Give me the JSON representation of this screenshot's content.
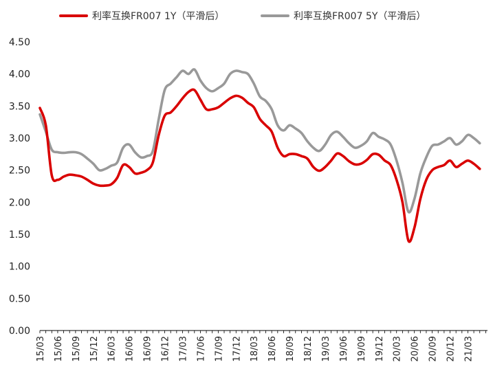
{
  "chart_data": {
    "type": "line",
    "ylim": [
      0,
      4.5
    ],
    "yticks": [
      "0.00",
      "0.50",
      "1.00",
      "1.50",
      "2.00",
      "2.50",
      "3.00",
      "3.50",
      "4.00",
      "4.50"
    ],
    "xtick_labels": [
      "15/03",
      "15/06",
      "15/09",
      "15/12",
      "16/03",
      "16/06",
      "16/09",
      "16/12",
      "17/03",
      "17/06",
      "17/09",
      "17/12",
      "18/03",
      "18/06",
      "18/09",
      "18/12",
      "19/03",
      "19/06",
      "19/09",
      "19/12",
      "20/03",
      "20/06",
      "20/09",
      "20/12",
      "21/03"
    ],
    "x_start": "2015-03",
    "grid": false,
    "legend_position": "top",
    "series": [
      {
        "name": "利率互换FR007 1Y（平滑后）",
        "color": "#d90000",
        "points": [
          [
            "2015-03",
            3.47
          ],
          [
            "2015-04",
            3.2
          ],
          [
            "2015-05",
            2.42
          ],
          [
            "2015-06",
            2.35
          ],
          [
            "2015-07",
            2.4
          ],
          [
            "2015-08",
            2.43
          ],
          [
            "2015-09",
            2.42
          ],
          [
            "2015-10",
            2.4
          ],
          [
            "2015-11",
            2.35
          ],
          [
            "2015-12",
            2.29
          ],
          [
            "2016-01",
            2.26
          ],
          [
            "2016-02",
            2.26
          ],
          [
            "2016-03",
            2.28
          ],
          [
            "2016-04",
            2.38
          ],
          [
            "2016-05",
            2.58
          ],
          [
            "2016-06",
            2.55
          ],
          [
            "2016-07",
            2.45
          ],
          [
            "2016-08",
            2.46
          ],
          [
            "2016-09",
            2.5
          ],
          [
            "2016-10",
            2.62
          ],
          [
            "2016-11",
            3.05
          ],
          [
            "2016-12",
            3.35
          ],
          [
            "2017-01",
            3.4
          ],
          [
            "2017-02",
            3.5
          ],
          [
            "2017-03",
            3.62
          ],
          [
            "2017-04",
            3.72
          ],
          [
            "2017-05",
            3.75
          ],
          [
            "2017-06",
            3.6
          ],
          [
            "2017-07",
            3.45
          ],
          [
            "2017-08",
            3.45
          ],
          [
            "2017-09",
            3.48
          ],
          [
            "2017-10",
            3.55
          ],
          [
            "2017-11",
            3.62
          ],
          [
            "2017-12",
            3.66
          ],
          [
            "2018-01",
            3.63
          ],
          [
            "2018-02",
            3.55
          ],
          [
            "2018-03",
            3.48
          ],
          [
            "2018-04",
            3.3
          ],
          [
            "2018-05",
            3.2
          ],
          [
            "2018-06",
            3.1
          ],
          [
            "2018-07",
            2.85
          ],
          [
            "2018-08",
            2.72
          ],
          [
            "2018-09",
            2.75
          ],
          [
            "2018-10",
            2.75
          ],
          [
            "2018-11",
            2.72
          ],
          [
            "2018-12",
            2.68
          ],
          [
            "2019-01",
            2.55
          ],
          [
            "2019-02",
            2.49
          ],
          [
            "2019-03",
            2.55
          ],
          [
            "2019-04",
            2.65
          ],
          [
            "2019-05",
            2.76
          ],
          [
            "2019-06",
            2.72
          ],
          [
            "2019-07",
            2.64
          ],
          [
            "2019-08",
            2.59
          ],
          [
            "2019-09",
            2.6
          ],
          [
            "2019-10",
            2.66
          ],
          [
            "2019-11",
            2.75
          ],
          [
            "2019-12",
            2.74
          ],
          [
            "2020-01",
            2.65
          ],
          [
            "2020-02",
            2.58
          ],
          [
            "2020-03",
            2.35
          ],
          [
            "2020-04",
            2.0
          ],
          [
            "2020-05",
            1.4
          ],
          [
            "2020-06",
            1.6
          ],
          [
            "2020-07",
            2.05
          ],
          [
            "2020-08",
            2.35
          ],
          [
            "2020-09",
            2.5
          ],
          [
            "2020-10",
            2.55
          ],
          [
            "2020-11",
            2.58
          ],
          [
            "2020-12",
            2.65
          ],
          [
            "2021-01",
            2.55
          ],
          [
            "2021-02",
            2.6
          ],
          [
            "2021-03",
            2.65
          ],
          [
            "2021-04",
            2.6
          ],
          [
            "2021-05",
            2.52
          ]
        ]
      },
      {
        "name": "利率互换FR007 5Y（平滑后）",
        "color": "#999999",
        "points": [
          [
            "2015-03",
            3.37
          ],
          [
            "2015-04",
            3.1
          ],
          [
            "2015-05",
            2.82
          ],
          [
            "2015-06",
            2.78
          ],
          [
            "2015-07",
            2.77
          ],
          [
            "2015-08",
            2.78
          ],
          [
            "2015-09",
            2.78
          ],
          [
            "2015-10",
            2.75
          ],
          [
            "2015-11",
            2.68
          ],
          [
            "2015-12",
            2.6
          ],
          [
            "2016-01",
            2.5
          ],
          [
            "2016-02",
            2.52
          ],
          [
            "2016-03",
            2.57
          ],
          [
            "2016-04",
            2.62
          ],
          [
            "2016-05",
            2.85
          ],
          [
            "2016-06",
            2.9
          ],
          [
            "2016-07",
            2.78
          ],
          [
            "2016-08",
            2.7
          ],
          [
            "2016-09",
            2.72
          ],
          [
            "2016-10",
            2.8
          ],
          [
            "2016-11",
            3.3
          ],
          [
            "2016-12",
            3.75
          ],
          [
            "2017-01",
            3.85
          ],
          [
            "2017-02",
            3.95
          ],
          [
            "2017-03",
            4.05
          ],
          [
            "2017-04",
            4.0
          ],
          [
            "2017-05",
            4.07
          ],
          [
            "2017-06",
            3.9
          ],
          [
            "2017-07",
            3.78
          ],
          [
            "2017-08",
            3.73
          ],
          [
            "2017-09",
            3.78
          ],
          [
            "2017-10",
            3.85
          ],
          [
            "2017-11",
            4.0
          ],
          [
            "2017-12",
            4.05
          ],
          [
            "2018-01",
            4.03
          ],
          [
            "2018-02",
            4.0
          ],
          [
            "2018-03",
            3.85
          ],
          [
            "2018-04",
            3.65
          ],
          [
            "2018-05",
            3.58
          ],
          [
            "2018-06",
            3.45
          ],
          [
            "2018-07",
            3.2
          ],
          [
            "2018-08",
            3.12
          ],
          [
            "2018-09",
            3.2
          ],
          [
            "2018-10",
            3.15
          ],
          [
            "2018-11",
            3.08
          ],
          [
            "2018-12",
            2.95
          ],
          [
            "2019-01",
            2.85
          ],
          [
            "2019-02",
            2.8
          ],
          [
            "2019-03",
            2.9
          ],
          [
            "2019-04",
            3.05
          ],
          [
            "2019-05",
            3.1
          ],
          [
            "2019-06",
            3.02
          ],
          [
            "2019-07",
            2.92
          ],
          [
            "2019-08",
            2.85
          ],
          [
            "2019-09",
            2.88
          ],
          [
            "2019-10",
            2.95
          ],
          [
            "2019-11",
            3.08
          ],
          [
            "2019-12",
            3.02
          ],
          [
            "2020-01",
            2.98
          ],
          [
            "2020-02",
            2.9
          ],
          [
            "2020-03",
            2.65
          ],
          [
            "2020-04",
            2.3
          ],
          [
            "2020-05",
            1.85
          ],
          [
            "2020-06",
            2.05
          ],
          [
            "2020-07",
            2.45
          ],
          [
            "2020-08",
            2.7
          ],
          [
            "2020-09",
            2.88
          ],
          [
            "2020-10",
            2.9
          ],
          [
            "2020-11",
            2.95
          ],
          [
            "2020-12",
            3.0
          ],
          [
            "2021-01",
            2.9
          ],
          [
            "2021-02",
            2.95
          ],
          [
            "2021-03",
            3.05
          ],
          [
            "2021-04",
            3.0
          ],
          [
            "2021-05",
            2.92
          ]
        ]
      }
    ]
  }
}
